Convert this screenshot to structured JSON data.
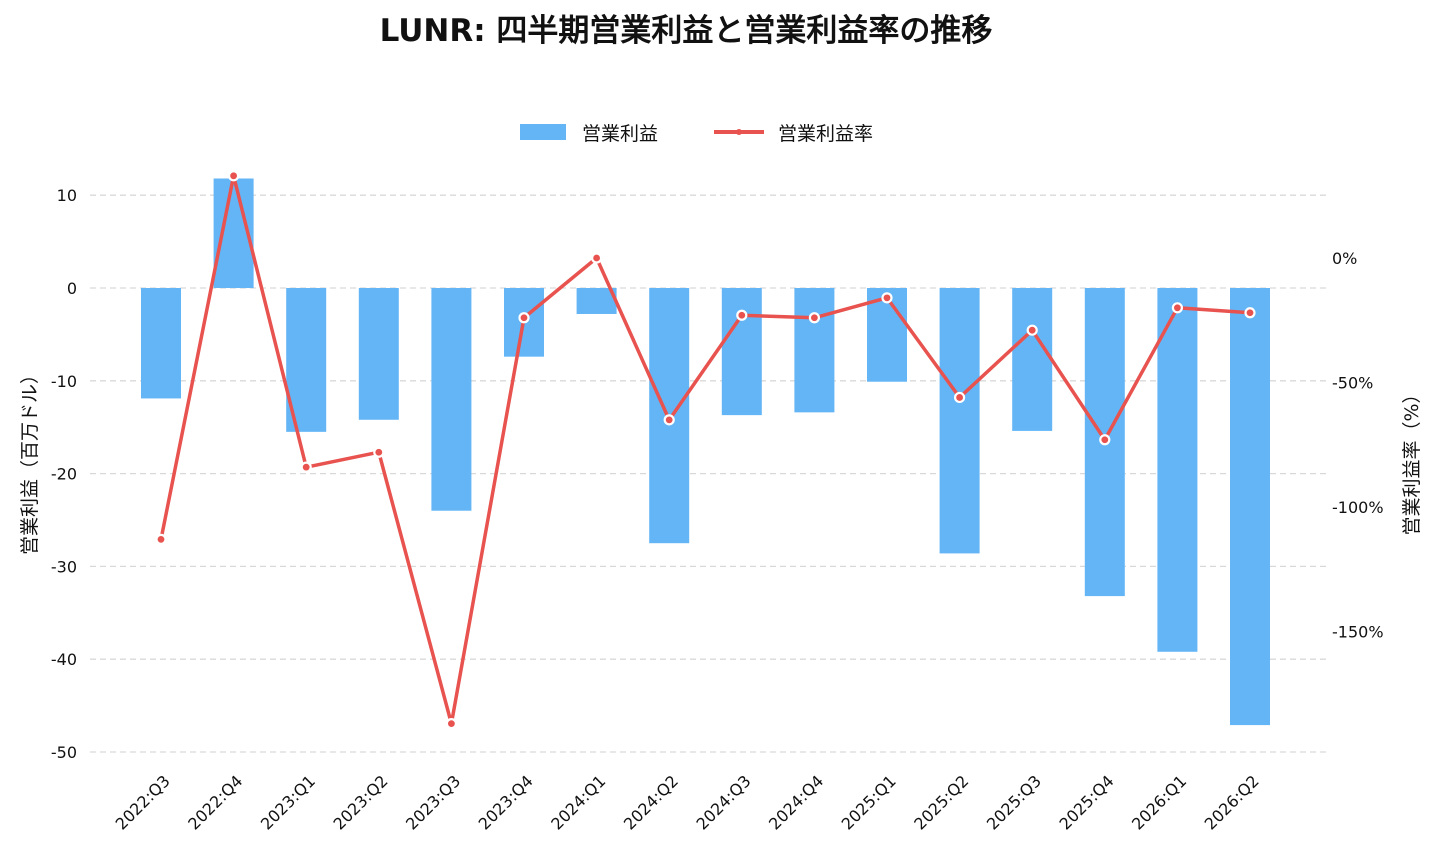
{
  "chart_data": {
    "type": "bar+line",
    "title": "LUNR: 四半期営業利益と営業利益率の推移",
    "categories": [
      "2022:Q3",
      "2022:Q4",
      "2023:Q1",
      "2023:Q2",
      "2023:Q3",
      "2023:Q4",
      "2024:Q1",
      "2024:Q2",
      "2024:Q3",
      "2024:Q4",
      "2025:Q1",
      "2025:Q2",
      "2025:Q3",
      "2025:Q4",
      "2026:Q1",
      "2026:Q2"
    ],
    "series": [
      {
        "name": "営業利益",
        "type": "bar",
        "axis": "left",
        "color": "#64b5f6",
        "values": [
          -11.9,
          11.8,
          -15.5,
          -14.2,
          -24.0,
          -7.4,
          -2.8,
          -27.5,
          -13.7,
          -13.4,
          -10.1,
          -28.6,
          -15.4,
          -33.2,
          -39.2,
          -47.1
        ]
      },
      {
        "name": "営業利益率",
        "type": "line",
        "axis": "right",
        "color": "#e8534f",
        "values": [
          -113,
          33,
          -84,
          -78,
          -187,
          -24,
          0,
          -65,
          -23,
          -24,
          -16,
          -56,
          -29,
          -73,
          -20,
          -22
        ]
      }
    ],
    "left_axis": {
      "label": "営業利益（百万ドル）",
      "ylim": [
        -50,
        12
      ],
      "ticks": [
        10,
        0,
        -10,
        -20,
        -30,
        -40,
        -50
      ],
      "tick_labels": [
        "10",
        "0",
        "-10",
        "-20",
        "-30",
        "-40",
        "-50"
      ]
    },
    "right_axis": {
      "label": "営業利益率（%）",
      "ticks": [
        0,
        -50,
        -100,
        -150
      ],
      "tick_labels": [
        "0%",
        "-50%",
        "-100%",
        "-150%"
      ]
    },
    "legend": {
      "position": "top-center",
      "entries": [
        "営業利益",
        "営業利益率"
      ]
    },
    "grid": true
  }
}
